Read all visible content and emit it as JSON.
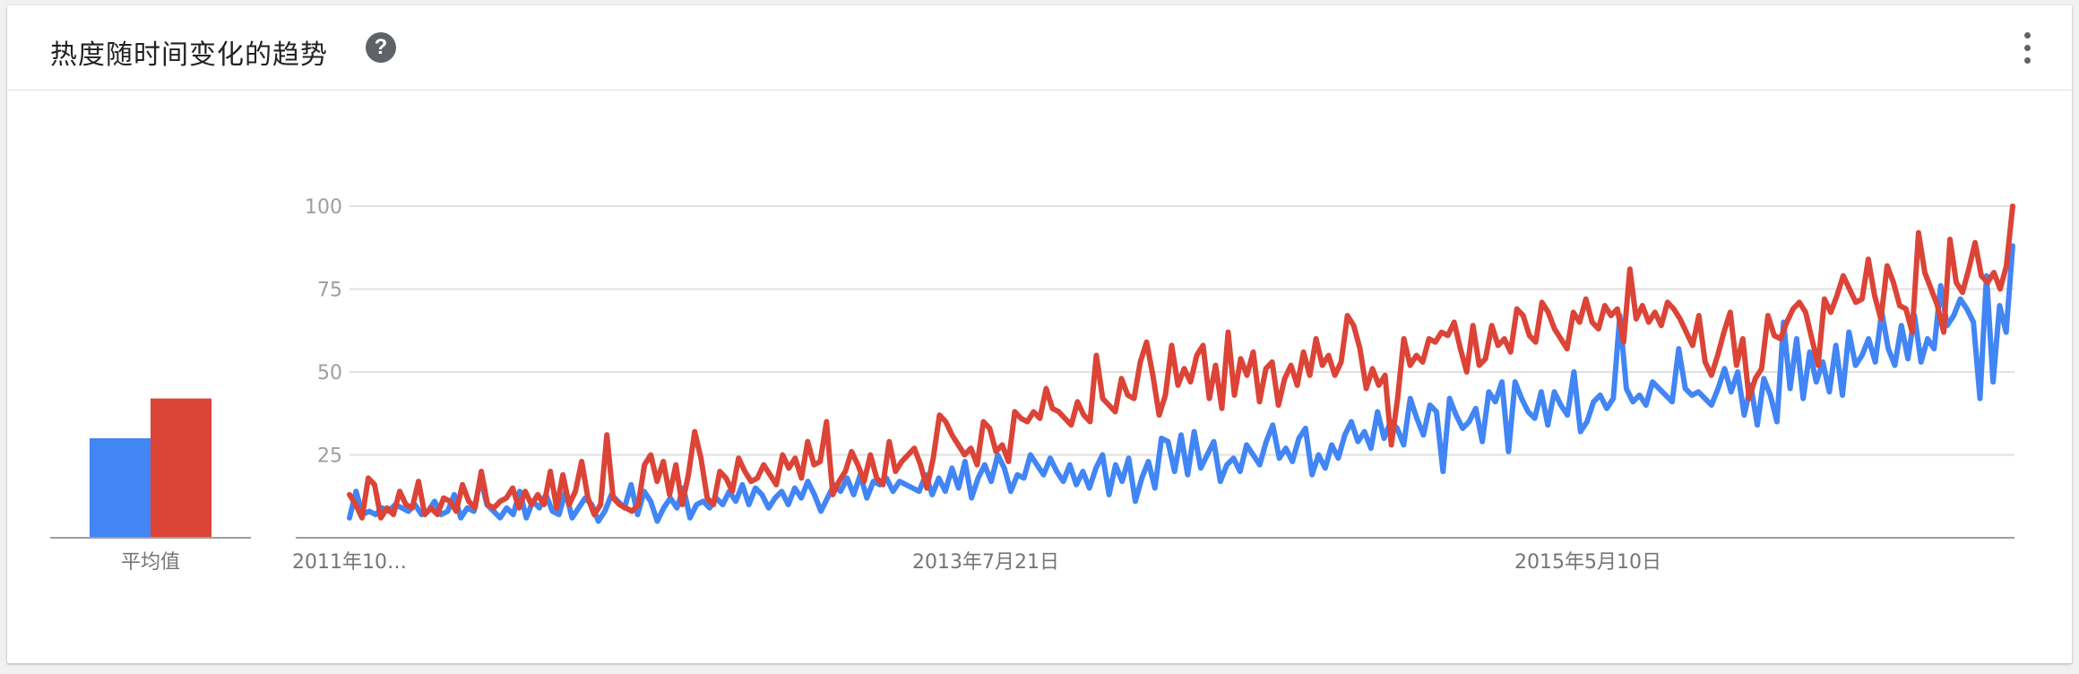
{
  "header": {
    "title": "热度随时间变化的趋势",
    "help_icon": "help-icon",
    "menu_icon": "more-vert-icon"
  },
  "chart_data": [
    {
      "type": "bar",
      "categories": [
        "平均值"
      ],
      "series": [
        {
          "color": "#4285f4",
          "values": [
            30
          ]
        },
        {
          "color": "#db4437",
          "values": [
            42
          ]
        }
      ],
      "ylim": [
        0,
        100
      ]
    },
    {
      "type": "line",
      "x_tick_labels": [
        "2011年10…",
        "2013年7月21日",
        "2015年5月10日"
      ],
      "y_ticks": [
        25,
        50,
        75,
        100
      ],
      "ylim": [
        0,
        100
      ],
      "grid": true,
      "series": [
        {
          "color": "#4285f4",
          "values": [
            6,
            14,
            7,
            8,
            7,
            9,
            8,
            10,
            9,
            8,
            10,
            7,
            8,
            11,
            7,
            8,
            13,
            6,
            9,
            8,
            18,
            10,
            8,
            6,
            9,
            7,
            14,
            6,
            11,
            9,
            13,
            8,
            7,
            14,
            6,
            9,
            12,
            10,
            5,
            8,
            13,
            11,
            9,
            16,
            7,
            14,
            11,
            5,
            9,
            12,
            9,
            15,
            6,
            10,
            11,
            9,
            12,
            10,
            14,
            11,
            16,
            10,
            15,
            13,
            9,
            12,
            14,
            10,
            15,
            12,
            17,
            13,
            8,
            12,
            16,
            14,
            18,
            13,
            19,
            12,
            17,
            16,
            18,
            14,
            17,
            16,
            15,
            14,
            19,
            13,
            18,
            14,
            21,
            15,
            23,
            12,
            18,
            22,
            17,
            25,
            21,
            14,
            19,
            18,
            25,
            22,
            19,
            24,
            20,
            17,
            22,
            16,
            20,
            15,
            21,
            25,
            13,
            22,
            17,
            24,
            11,
            18,
            23,
            15,
            30,
            29,
            20,
            31,
            19,
            32,
            21,
            25,
            29,
            17,
            22,
            24,
            20,
            28,
            25,
            22,
            29,
            34,
            24,
            27,
            23,
            30,
            33,
            19,
            25,
            21,
            28,
            24,
            31,
            35,
            29,
            32,
            27,
            38,
            30,
            35,
            33,
            28,
            42,
            36,
            31,
            40,
            38,
            20,
            42,
            37,
            33,
            35,
            39,
            29,
            44,
            41,
            47,
            26,
            47,
            42,
            38,
            36,
            44,
            34,
            44,
            40,
            37,
            50,
            32,
            35,
            41,
            43,
            39,
            42,
            67,
            45,
            41,
            43,
            40,
            47,
            45,
            43,
            41,
            57,
            45,
            43,
            44,
            42,
            40,
            45,
            51,
            44,
            50,
            37,
            46,
            34,
            48,
            43,
            35,
            65,
            45,
            60,
            42,
            56,
            47,
            53,
            44,
            58,
            43,
            62,
            52,
            55,
            60,
            53,
            68,
            57,
            52,
            64,
            54,
            67,
            53,
            60,
            57,
            76,
            64,
            67,
            72,
            69,
            65,
            42,
            79,
            47,
            70,
            62,
            88
          ]
        },
        {
          "color": "#db4437",
          "values": [
            13,
            10,
            6,
            18,
            16,
            6,
            9,
            7,
            14,
            10,
            9,
            17,
            7,
            9,
            7,
            12,
            11,
            8,
            16,
            11,
            9,
            20,
            10,
            9,
            11,
            12,
            15,
            9,
            14,
            10,
            13,
            10,
            20,
            9,
            19,
            10,
            14,
            23,
            12,
            7,
            10,
            31,
            12,
            10,
            9,
            8,
            10,
            22,
            25,
            17,
            23,
            13,
            22,
            10,
            19,
            32,
            24,
            12,
            10,
            20,
            18,
            14,
            24,
            20,
            17,
            18,
            22,
            19,
            16,
            25,
            21,
            24,
            18,
            29,
            22,
            23,
            35,
            13,
            17,
            20,
            26,
            22,
            17,
            25,
            18,
            16,
            29,
            20,
            23,
            25,
            27,
            22,
            15,
            24,
            37,
            35,
            31,
            28,
            25,
            27,
            22,
            35,
            33,
            26,
            28,
            23,
            38,
            36,
            35,
            38,
            36,
            45,
            39,
            38,
            36,
            34,
            41,
            37,
            35,
            55,
            42,
            40,
            38,
            48,
            43,
            42,
            53,
            59,
            49,
            37,
            43,
            58,
            46,
            51,
            47,
            55,
            58,
            42,
            52,
            39,
            62,
            43,
            54,
            49,
            56,
            41,
            51,
            53,
            40,
            48,
            52,
            46,
            56,
            49,
            60,
            52,
            55,
            49,
            53,
            67,
            64,
            57,
            45,
            51,
            46,
            49,
            28,
            42,
            60,
            52,
            55,
            53,
            60,
            59,
            62,
            61,
            65,
            57,
            50,
            64,
            52,
            54,
            64,
            58,
            60,
            56,
            69,
            67,
            61,
            59,
            71,
            68,
            63,
            60,
            57,
            68,
            65,
            72,
            65,
            63,
            70,
            67,
            69,
            59,
            81,
            66,
            70,
            65,
            68,
            64,
            71,
            69,
            66,
            62,
            58,
            67,
            53,
            49,
            55,
            62,
            68,
            52,
            60,
            42,
            48,
            51,
            67,
            61,
            60,
            65,
            69,
            71,
            68,
            60,
            52,
            72,
            68,
            73,
            79,
            75,
            71,
            72,
            84,
            73,
            66,
            82,
            77,
            70,
            69,
            62,
            92,
            80,
            75,
            70,
            62,
            90,
            77,
            74,
            81,
            89,
            79,
            77,
            80,
            75,
            82,
            100
          ]
        }
      ]
    }
  ]
}
